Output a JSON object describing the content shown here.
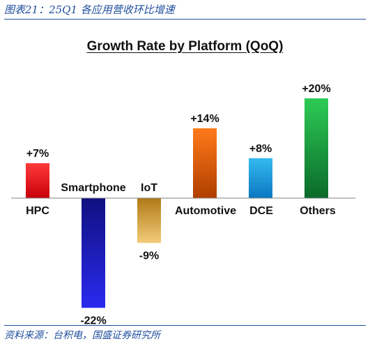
{
  "figure_caption": "图表21：25Q1 各应用营收环比增速",
  "source_note": "资料来源：台积电，国盛证券研究所",
  "chart_data": {
    "type": "bar",
    "title": "Growth Rate by Platform (QoQ)",
    "categories": [
      "HPC",
      "Smartphone",
      "IoT",
      "Automotive",
      "DCE",
      "Others"
    ],
    "values": [
      7,
      -22,
      -9,
      14,
      8,
      20
    ],
    "value_labels": [
      "+7%",
      "-22%",
      "-9%",
      "+14%",
      "+8%",
      "+20%"
    ],
    "unit": "%",
    "xlabel": "",
    "ylabel": "",
    "grid": false,
    "legend": "none",
    "colors": [
      [
        "#c8000a",
        "#ff3a3a"
      ],
      [
        "#101080",
        "#2a2af0"
      ],
      [
        "#b07a18",
        "#f2cc7a"
      ],
      [
        "#b03e00",
        "#ff7a1a"
      ],
      [
        "#0a78c2",
        "#35b9ef"
      ],
      [
        "#0a6a2a",
        "#2ecb55"
      ]
    ]
  }
}
